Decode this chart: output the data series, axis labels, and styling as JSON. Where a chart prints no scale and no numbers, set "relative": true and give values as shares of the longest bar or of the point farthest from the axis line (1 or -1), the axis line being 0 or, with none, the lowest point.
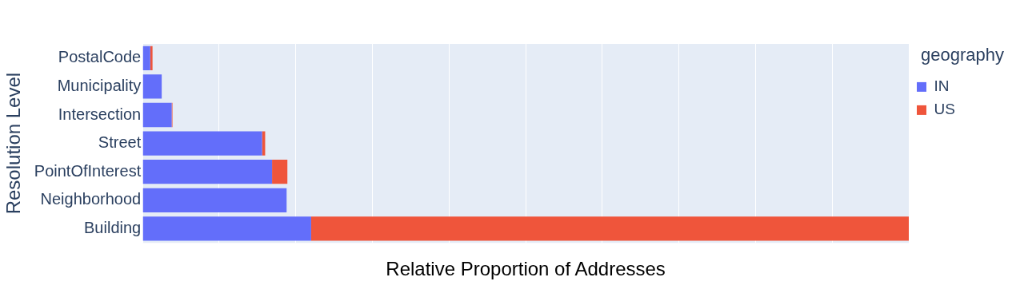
{
  "chart_data": {
    "type": "bar",
    "orientation": "horizontal",
    "stacked": true,
    "relative": true,
    "xlabel": "Relative Proportion of Addresses",
    "ylabel": "Resolution Level",
    "legend_title": "geography",
    "legend": "top right",
    "grid": "x",
    "categories": [
      "PostalCode",
      "Municipality",
      "Intersection",
      "Street",
      "PointOfInterest",
      "Neighborhood",
      "Building"
    ],
    "series": [
      {
        "name": "IN",
        "color": "#636efa",
        "values": [
          0.01,
          0.025,
          0.038,
          0.156,
          0.169,
          0.188,
          0.22
        ]
      },
      {
        "name": "US",
        "color": "#ef553b",
        "values": [
          0.003,
          0,
          0.001,
          0.004,
          0.02,
          0,
          0.78
        ]
      }
    ]
  }
}
